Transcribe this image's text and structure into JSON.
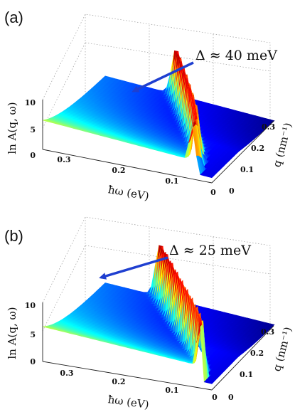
{
  "chart_data": [
    {
      "panel": "(a)",
      "type": "surface",
      "x_label": "ħω (eV)",
      "x_ticks": [
        "0.3",
        "0.2",
        "0.1",
        "0"
      ],
      "y_label": "q (nm⁻¹)",
      "y_ticks": [
        "0",
        "0.1",
        "0.2",
        "0.3"
      ],
      "z_label": "ln A(q, ω)",
      "z_ticks": [
        "0",
        "5",
        "10"
      ],
      "zlim": [
        0,
        10
      ],
      "annotation": "Δ ≈ 40 meV",
      "gap_eV": 0.04,
      "colormap": "jet"
    },
    {
      "panel": "(b)",
      "type": "surface",
      "x_label": "ħω (eV)",
      "x_ticks": [
        "0.3",
        "0.2",
        "0.1",
        "0"
      ],
      "y_label": "q (nm⁻¹)",
      "y_ticks": [
        "0",
        "0.1",
        "0.2",
        "0.3"
      ],
      "z_label": "ln A(q, ω)",
      "z_ticks": [
        "0",
        "5",
        "10"
      ],
      "zlim": [
        0,
        10
      ],
      "annotation": "Δ ≈ 25 meV",
      "gap_eV": 0.025,
      "colormap": "jet"
    }
  ],
  "colors": {
    "arrow": "#1f3fd0",
    "jet_low": "#00007f",
    "jet_high": "#7f0000"
  }
}
